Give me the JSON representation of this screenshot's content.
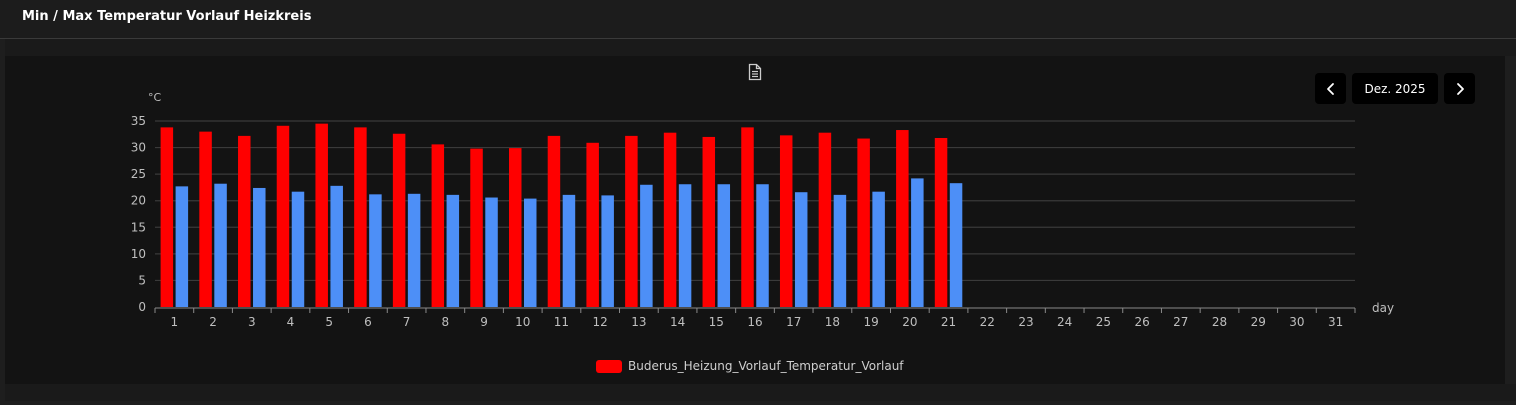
{
  "panel": {
    "title": "Min / Max Temperatur Vorlauf Heizkreis"
  },
  "controls": {
    "month": "Dez. 2025",
    "prev_icon": "chevron-left-icon",
    "next_icon": "chevron-right-icon",
    "export_icon": "document-icon"
  },
  "colors": {
    "max_series": "#ff0000",
    "min_series": "#4d8ff7",
    "grid": "#3a3a3a",
    "tick_text": "#bfbfbf"
  },
  "chart_data": {
    "type": "bar",
    "ylabel": "°C",
    "xlabel": "day",
    "ylim": [
      0,
      35
    ],
    "yticks": [
      0,
      5,
      10,
      15,
      20,
      25,
      30,
      35
    ],
    "grid": true,
    "legend_position": "bottom-center",
    "categories": [
      "1",
      "2",
      "3",
      "4",
      "5",
      "6",
      "7",
      "8",
      "9",
      "10",
      "11",
      "12",
      "13",
      "14",
      "15",
      "16",
      "17",
      "18",
      "19",
      "20",
      "21",
      "22",
      "23",
      "24",
      "25",
      "26",
      "27",
      "28",
      "29",
      "30",
      "31"
    ],
    "series": [
      {
        "name": "Buderus_Heizung_Vorlauf_Temperatur_Vorlauf",
        "values": [
          33.8,
          33.0,
          32.2,
          34.1,
          34.5,
          33.8,
          32.6,
          30.6,
          29.8,
          29.9,
          32.2,
          30.9,
          32.2,
          32.8,
          32.0,
          33.8,
          32.3,
          32.8,
          31.7,
          33.3,
          31.8,
          null,
          null,
          null,
          null,
          null,
          null,
          null,
          null,
          null,
          null
        ]
      },
      {
        "values": [
          22.7,
          23.2,
          22.4,
          21.7,
          22.8,
          21.2,
          21.3,
          21.1,
          20.6,
          20.4,
          21.1,
          21.0,
          23.0,
          23.1,
          23.1,
          23.1,
          21.6,
          21.1,
          21.7,
          24.2,
          23.3,
          null,
          null,
          null,
          null,
          null,
          null,
          null,
          null,
          null,
          null
        ]
      }
    ]
  }
}
